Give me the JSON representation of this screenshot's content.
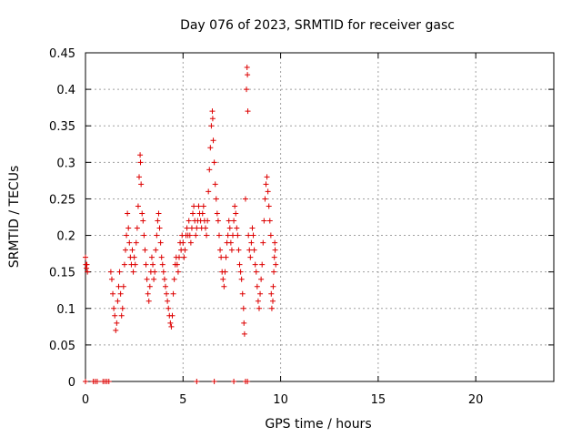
{
  "chart_data": {
    "type": "scatter",
    "title": "Day 076 of 2023, SRMTID for receiver gasc",
    "xlabel": "GPS time / hours",
    "ylabel": "SRMTID / TECUs",
    "xlim": [
      0,
      24
    ],
    "ylim": [
      0,
      0.45
    ],
    "xticks": [
      0,
      5,
      10,
      15,
      20
    ],
    "xtick_labels": [
      "0",
      "5",
      "10",
      "15",
      "20"
    ],
    "yticks": [
      0,
      0.05,
      0.1,
      0.15,
      0.2,
      0.25,
      0.3,
      0.35,
      0.4,
      0.45
    ],
    "ytick_labels": [
      "0",
      "0.05",
      "0.1",
      "0.15",
      "0.2",
      "0.25",
      "0.3",
      "0.35",
      "0.4",
      "0.45"
    ],
    "grid": true,
    "marker": "plus",
    "color": "#dd0000",
    "series": [
      {
        "name": "SRMTID",
        "points": [
          [
            0.0,
            0.17
          ],
          [
            0.02,
            0.16
          ],
          [
            0.05,
            0.155
          ],
          [
            0.07,
            0.16
          ],
          [
            0.1,
            0.15
          ],
          [
            0.0,
            0.0
          ],
          [
            0.4,
            0.0
          ],
          [
            0.5,
            0.0
          ],
          [
            0.6,
            0.0
          ],
          [
            0.9,
            0.0
          ],
          [
            1.0,
            0.0
          ],
          [
            1.1,
            0.0
          ],
          [
            1.2,
            0.0
          ],
          [
            1.3,
            0.15
          ],
          [
            1.35,
            0.14
          ],
          [
            1.4,
            0.12
          ],
          [
            1.45,
            0.1
          ],
          [
            1.5,
            0.09
          ],
          [
            1.55,
            0.07
          ],
          [
            1.6,
            0.08
          ],
          [
            1.65,
            0.11
          ],
          [
            1.7,
            0.13
          ],
          [
            1.75,
            0.15
          ],
          [
            1.8,
            0.12
          ],
          [
            1.85,
            0.09
          ],
          [
            1.9,
            0.1
          ],
          [
            1.95,
            0.13
          ],
          [
            2.0,
            0.16
          ],
          [
            2.05,
            0.18
          ],
          [
            2.1,
            0.2
          ],
          [
            2.15,
            0.23
          ],
          [
            2.2,
            0.21
          ],
          [
            2.25,
            0.19
          ],
          [
            2.3,
            0.17
          ],
          [
            2.35,
            0.16
          ],
          [
            2.4,
            0.18
          ],
          [
            2.45,
            0.15
          ],
          [
            2.5,
            0.17
          ],
          [
            2.55,
            0.16
          ],
          [
            2.6,
            0.19
          ],
          [
            2.65,
            0.21
          ],
          [
            2.7,
            0.24
          ],
          [
            2.75,
            0.28
          ],
          [
            2.8,
            0.31
          ],
          [
            2.82,
            0.3
          ],
          [
            2.85,
            0.27
          ],
          [
            2.9,
            0.23
          ],
          [
            2.95,
            0.22
          ],
          [
            3.0,
            0.2
          ],
          [
            3.05,
            0.18
          ],
          [
            3.1,
            0.16
          ],
          [
            3.15,
            0.14
          ],
          [
            3.2,
            0.12
          ],
          [
            3.25,
            0.11
          ],
          [
            3.3,
            0.13
          ],
          [
            3.35,
            0.15
          ],
          [
            3.4,
            0.17
          ],
          [
            3.45,
            0.16
          ],
          [
            3.5,
            0.14
          ],
          [
            3.55,
            0.15
          ],
          [
            3.6,
            0.18
          ],
          [
            3.65,
            0.2
          ],
          [
            3.7,
            0.22
          ],
          [
            3.75,
            0.23
          ],
          [
            3.8,
            0.21
          ],
          [
            3.85,
            0.19
          ],
          [
            3.9,
            0.17
          ],
          [
            3.95,
            0.16
          ],
          [
            4.0,
            0.15
          ],
          [
            4.05,
            0.14
          ],
          [
            4.1,
            0.13
          ],
          [
            4.15,
            0.12
          ],
          [
            4.2,
            0.11
          ],
          [
            4.25,
            0.1
          ],
          [
            4.3,
            0.09
          ],
          [
            4.35,
            0.08
          ],
          [
            4.4,
            0.075
          ],
          [
            4.45,
            0.09
          ],
          [
            4.5,
            0.12
          ],
          [
            4.55,
            0.14
          ],
          [
            4.6,
            0.16
          ],
          [
            4.65,
            0.17
          ],
          [
            4.7,
            0.16
          ],
          [
            4.75,
            0.15
          ],
          [
            4.8,
            0.17
          ],
          [
            4.85,
            0.19
          ],
          [
            4.9,
            0.18
          ],
          [
            4.95,
            0.2
          ],
          [
            5.0,
            0.19
          ],
          [
            5.05,
            0.17
          ],
          [
            5.1,
            0.18
          ],
          [
            5.15,
            0.2
          ],
          [
            5.2,
            0.21
          ],
          [
            5.25,
            0.2
          ],
          [
            5.3,
            0.22
          ],
          [
            5.35,
            0.2
          ],
          [
            5.4,
            0.19
          ],
          [
            5.45,
            0.21
          ],
          [
            5.5,
            0.23
          ],
          [
            5.55,
            0.24
          ],
          [
            5.6,
            0.22
          ],
          [
            5.65,
            0.2
          ],
          [
            5.7,
            0.21
          ],
          [
            5.75,
            0.22
          ],
          [
            5.8,
            0.24
          ],
          [
            5.85,
            0.23
          ],
          [
            5.9,
            0.22
          ],
          [
            5.95,
            0.21
          ],
          [
            6.0,
            0.23
          ],
          [
            6.05,
            0.24
          ],
          [
            6.1,
            0.22
          ],
          [
            6.15,
            0.21
          ],
          [
            6.2,
            0.2
          ],
          [
            6.25,
            0.22
          ],
          [
            6.3,
            0.26
          ],
          [
            6.35,
            0.29
          ],
          [
            6.4,
            0.32
          ],
          [
            6.45,
            0.35
          ],
          [
            6.5,
            0.37
          ],
          [
            6.52,
            0.36
          ],
          [
            6.55,
            0.33
          ],
          [
            6.6,
            0.3
          ],
          [
            6.65,
            0.27
          ],
          [
            6.7,
            0.25
          ],
          [
            6.75,
            0.23
          ],
          [
            6.8,
            0.22
          ],
          [
            6.85,
            0.2
          ],
          [
            6.9,
            0.18
          ],
          [
            6.95,
            0.17
          ],
          [
            7.0,
            0.15
          ],
          [
            7.05,
            0.14
          ],
          [
            7.1,
            0.13
          ],
          [
            7.15,
            0.15
          ],
          [
            7.2,
            0.17
          ],
          [
            7.25,
            0.19
          ],
          [
            7.3,
            0.2
          ],
          [
            7.35,
            0.22
          ],
          [
            7.4,
            0.21
          ],
          [
            7.45,
            0.19
          ],
          [
            7.5,
            0.18
          ],
          [
            7.55,
            0.2
          ],
          [
            7.6,
            0.22
          ],
          [
            7.65,
            0.24
          ],
          [
            7.7,
            0.23
          ],
          [
            7.75,
            0.21
          ],
          [
            7.8,
            0.2
          ],
          [
            7.85,
            0.18
          ],
          [
            7.9,
            0.16
          ],
          [
            7.95,
            0.15
          ],
          [
            8.0,
            0.14
          ],
          [
            8.05,
            0.12
          ],
          [
            8.1,
            0.1
          ],
          [
            8.12,
            0.08
          ],
          [
            8.15,
            0.065
          ],
          [
            8.2,
            0.25
          ],
          [
            8.25,
            0.4
          ],
          [
            8.28,
            0.43
          ],
          [
            8.3,
            0.42
          ],
          [
            8.32,
            0.37
          ],
          [
            8.35,
            0.2
          ],
          [
            8.4,
            0.18
          ],
          [
            8.45,
            0.17
          ],
          [
            8.5,
            0.19
          ],
          [
            8.55,
            0.21
          ],
          [
            8.6,
            0.2
          ],
          [
            8.65,
            0.18
          ],
          [
            8.7,
            0.16
          ],
          [
            8.75,
            0.15
          ],
          [
            8.8,
            0.13
          ],
          [
            8.85,
            0.11
          ],
          [
            8.9,
            0.1
          ],
          [
            8.95,
            0.12
          ],
          [
            9.0,
            0.14
          ],
          [
            9.05,
            0.16
          ],
          [
            9.1,
            0.19
          ],
          [
            9.15,
            0.22
          ],
          [
            9.2,
            0.25
          ],
          [
            9.25,
            0.27
          ],
          [
            9.3,
            0.28
          ],
          [
            9.35,
            0.26
          ],
          [
            9.4,
            0.24
          ],
          [
            9.45,
            0.22
          ],
          [
            9.5,
            0.2
          ],
          [
            9.52,
            0.12
          ],
          [
            9.55,
            0.1
          ],
          [
            9.6,
            0.11
          ],
          [
            9.62,
            0.13
          ],
          [
            9.65,
            0.15
          ],
          [
            9.68,
            0.17
          ],
          [
            9.7,
            0.19
          ],
          [
            9.72,
            0.18
          ],
          [
            9.75,
            0.16
          ],
          [
            5.7,
            0.0
          ],
          [
            6.6,
            0.0
          ],
          [
            7.6,
            0.0
          ],
          [
            8.2,
            0.0
          ],
          [
            8.3,
            0.0
          ]
        ]
      }
    ]
  }
}
